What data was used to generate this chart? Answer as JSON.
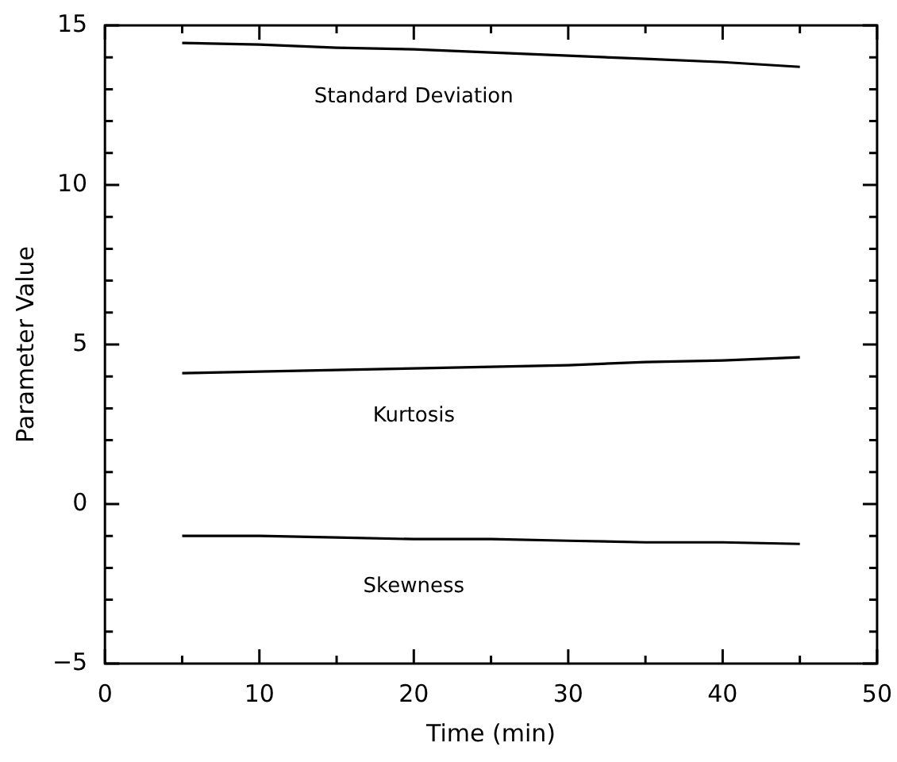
{
  "chart_data": {
    "type": "line",
    "xlabel": "Time (min)",
    "ylabel": "Parameter Value",
    "x": [
      5,
      10,
      15,
      20,
      25,
      30,
      35,
      40,
      45
    ],
    "xlim": [
      0,
      50
    ],
    "ylim": [
      -5,
      15
    ],
    "xticks": [
      0,
      {
        "value": 5,
        "label": null
      },
      10,
      {
        "value": 15,
        "label": null
      },
      20,
      {
        "value": 25,
        "label": null
      },
      30,
      {
        "value": 35,
        "label": null
      },
      40,
      {
        "value": 45,
        "label": null
      },
      50
    ],
    "yticks": [
      {
        "value": -5,
        "label": "−5"
      },
      {
        "value": -4,
        "label": null
      },
      {
        "value": -3,
        "label": null
      },
      {
        "value": -2,
        "label": null
      },
      {
        "value": -1,
        "label": null
      },
      0,
      {
        "value": 1,
        "label": null
      },
      {
        "value": 2,
        "label": null
      },
      {
        "value": 3,
        "label": null
      },
      {
        "value": 4,
        "label": null
      },
      5,
      {
        "value": 6,
        "label": null
      },
      {
        "value": 7,
        "label": null
      },
      {
        "value": 8,
        "label": null
      },
      {
        "value": 9,
        "label": null
      },
      10,
      {
        "value": 11,
        "label": null
      },
      {
        "value": 12,
        "label": null
      },
      {
        "value": 13,
        "label": null
      },
      {
        "value": 14,
        "label": null
      },
      15
    ],
    "marker": "none",
    "line_style": "solid",
    "series": [
      {
        "name": "Standard Deviation",
        "color": "#000000",
        "values": [
          14.45,
          14.4,
          14.3,
          14.25,
          14.15,
          14.05,
          13.95,
          13.85,
          13.7
        ]
      },
      {
        "name": "Kurtosis",
        "color": "#000000",
        "values": [
          4.1,
          4.15,
          4.2,
          4.25,
          4.3,
          4.35,
          4.45,
          4.5,
          4.6
        ]
      },
      {
        "name": "Skewness",
        "color": "#000000",
        "values": [
          -1.0,
          -1.0,
          -1.05,
          -1.1,
          -1.1,
          -1.15,
          -1.2,
          -1.2,
          -1.25
        ]
      }
    ]
  }
}
